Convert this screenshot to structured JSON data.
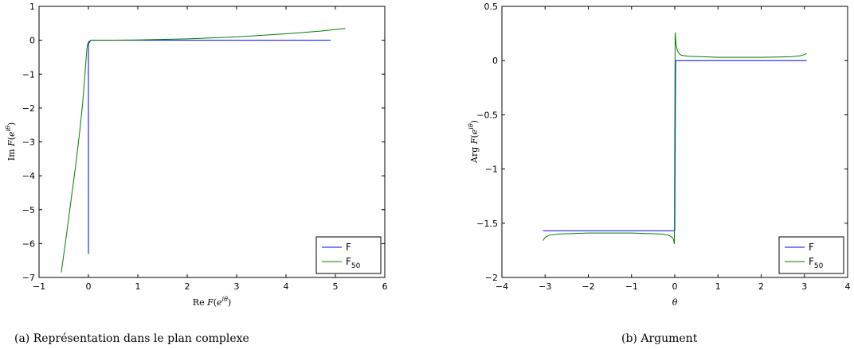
{
  "chart_data": [
    {
      "type": "line",
      "caption": "(a)  Représentation dans le plan complexe",
      "xlabel": "Re F(e^{iθ})",
      "ylabel": "Im F(e^{iθ})",
      "xlim": [
        -1,
        6
      ],
      "ylim": [
        -7,
        1
      ],
      "xticks": [
        "−1",
        "0",
        "1",
        "2",
        "3",
        "4",
        "5",
        "6"
      ],
      "yticks": [
        "−7",
        "−6",
        "−5",
        "−4",
        "−3",
        "−2",
        "−1",
        "0",
        "1"
      ],
      "xtick_values": [
        -1,
        0,
        1,
        2,
        3,
        4,
        5,
        6
      ],
      "ytick_values": [
        -7,
        -6,
        -5,
        -4,
        -3,
        -2,
        -1,
        0,
        1
      ],
      "grid": false,
      "legend_position": "bottom-right",
      "series": [
        {
          "name": "F",
          "color": "#0000ff",
          "x": [
            0.0,
            0.0,
            0.05,
            0.5,
            1.0,
            2.0,
            3.0,
            4.0,
            4.9
          ],
          "y": [
            -6.3,
            -0.1,
            0.0,
            0.0,
            0.0,
            0.0,
            0.0,
            0.0,
            0.0
          ]
        },
        {
          "name": "F",
          "name_sub": "50",
          "color": "#007f00",
          "x": [
            -0.55,
            -0.45,
            -0.35,
            -0.25,
            -0.18,
            -0.12,
            -0.08,
            -0.05,
            -0.03,
            -0.02,
            0.0,
            0.05,
            0.3,
            1.0,
            2.0,
            3.0,
            4.0,
            4.7,
            5.2
          ],
          "y": [
            -6.85,
            -5.8,
            -4.7,
            -3.6,
            -2.75,
            -1.9,
            -1.2,
            -0.6,
            -0.25,
            -0.15,
            -0.05,
            0.0,
            0.0,
            0.01,
            0.04,
            0.1,
            0.19,
            0.27,
            0.35
          ]
        }
      ]
    },
    {
      "type": "line",
      "caption": "(b)  Argument",
      "xlabel": "θ",
      "ylabel": "Arg F(e^{iθ})",
      "xlim": [
        -4,
        4
      ],
      "ylim": [
        -2,
        0.5
      ],
      "xticks": [
        "−4",
        "−3",
        "−2",
        "−1",
        "0",
        "1",
        "2",
        "3",
        "4"
      ],
      "yticks": [
        "−2",
        "−1.5",
        "−1",
        "−0.5",
        "0",
        "0.5"
      ],
      "xtick_values": [
        -4,
        -3,
        -2,
        -1,
        0,
        1,
        2,
        3,
        4
      ],
      "ytick_values": [
        -2,
        -1.5,
        -1,
        -0.5,
        0,
        0.5
      ],
      "grid": false,
      "legend_position": "bottom-right",
      "series": [
        {
          "name": "F",
          "color": "#0000ff",
          "x": [
            -3.05,
            -2.0,
            -1.0,
            -0.02,
            0.0,
            0.02,
            1.0,
            2.0,
            3.05
          ],
          "y": [
            -1.57,
            -1.57,
            -1.57,
            -1.57,
            -1.57,
            0.0,
            0.0,
            0.0,
            0.0
          ]
        },
        {
          "name": "F",
          "name_sub": "50",
          "color": "#007f00",
          "x": [
            -3.05,
            -3.0,
            -2.9,
            -2.7,
            -2.0,
            -1.0,
            -0.3,
            -0.15,
            -0.1,
            -0.06,
            -0.03,
            -0.01,
            0.0,
            0.01,
            0.03,
            0.06,
            0.1,
            0.15,
            0.3,
            1.0,
            2.0,
            2.7,
            2.9,
            3.0,
            3.05
          ],
          "y": [
            -1.66,
            -1.63,
            -1.61,
            -1.6,
            -1.59,
            -1.59,
            -1.6,
            -1.61,
            -1.62,
            -1.63,
            -1.65,
            -1.69,
            -0.7,
            0.26,
            0.15,
            0.09,
            0.065,
            0.05,
            0.04,
            0.03,
            0.03,
            0.035,
            0.045,
            0.055,
            0.065
          ]
        }
      ]
    }
  ]
}
